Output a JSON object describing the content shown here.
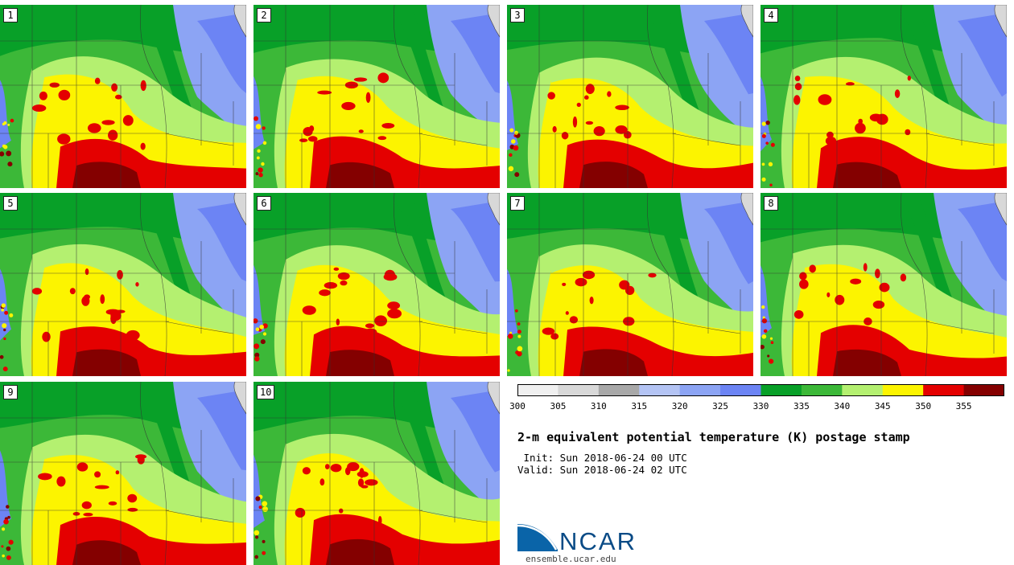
{
  "panels": [
    {
      "label": "1"
    },
    {
      "label": "2"
    },
    {
      "label": "3"
    },
    {
      "label": "4"
    },
    {
      "label": "5"
    },
    {
      "label": "6"
    },
    {
      "label": "7"
    },
    {
      "label": "8"
    },
    {
      "label": "9"
    },
    {
      "label": "10"
    }
  ],
  "colorbar": {
    "bins": [
      {
        "color": "#f0f0f0"
      },
      {
        "color": "#d8d8d8"
      },
      {
        "color": "#a8a8a8"
      },
      {
        "color": "#b4c4f4"
      },
      {
        "color": "#8ca4f4"
      },
      {
        "color": "#6c84f4"
      },
      {
        "color": "#08a028"
      },
      {
        "color": "#3cb838"
      },
      {
        "color": "#b4f070"
      },
      {
        "color": "#fcf400"
      },
      {
        "color": "#e40000"
      },
      {
        "color": "#840000"
      }
    ],
    "ticks": [
      "300",
      "305",
      "310",
      "315",
      "320",
      "325",
      "330",
      "335",
      "340",
      "345",
      "350",
      "355"
    ]
  },
  "title": "2-m equivalent potential temperature (K) postage stamp",
  "init": " Init: Sun 2018-06-24 00 UTC",
  "valid": "Valid: Sun 2018-06-24 02 UTC",
  "logo": {
    "text": "NCAR",
    "url": "ensemble.ucar.edu"
  }
}
